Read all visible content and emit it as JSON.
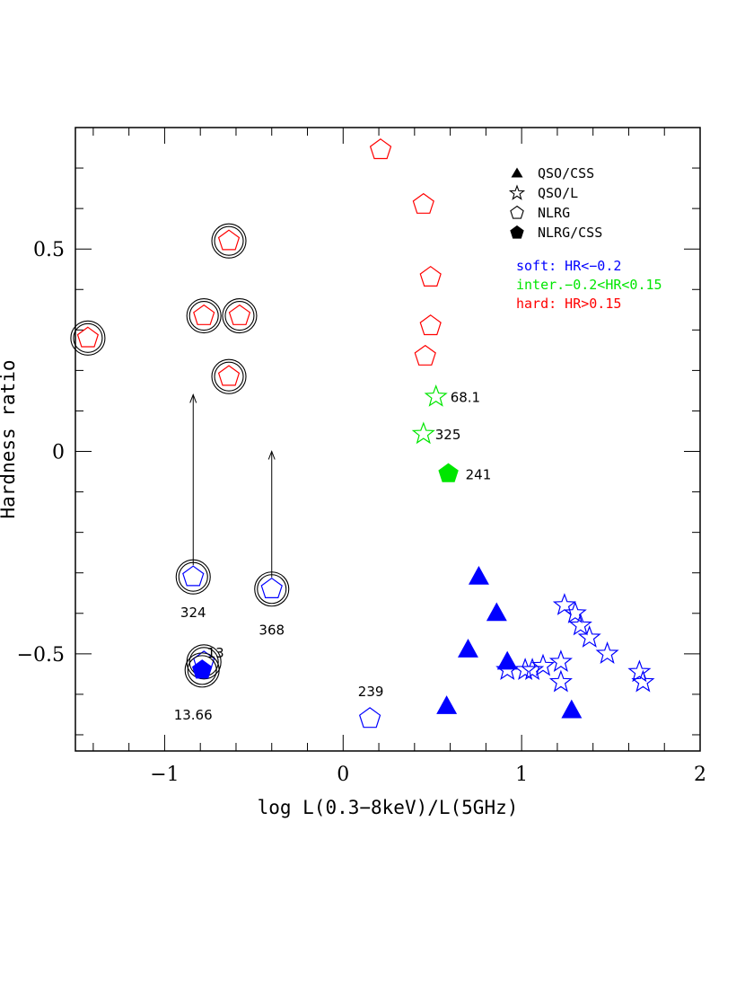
{
  "chart_data": {
    "type": "scatter",
    "title": "",
    "xlabel": "log L(0.3−8keV)/L(5GHz)",
    "ylabel": "Hardness ratio",
    "xlim": [
      -1.5,
      2
    ],
    "ylim": [
      -0.74,
      0.8
    ],
    "x_ticks": [
      -1,
      0,
      1,
      2
    ],
    "x_tick_labels": [
      "−1",
      "0",
      "1",
      "2"
    ],
    "y_ticks": [
      -0.5,
      0,
      0.5
    ],
    "y_tick_labels": [
      "−0.5",
      "0",
      "0.5"
    ],
    "legend": {
      "placement": "top-right",
      "entries": [
        {
          "marker": "triangle-filled",
          "label": "QSO/CSS"
        },
        {
          "marker": "star-open",
          "label": "QSO/L"
        },
        {
          "marker": "pentagon-open",
          "label": "NLRG"
        },
        {
          "marker": "pentagon-filled",
          "label": "NLRG/CSS"
        }
      ],
      "classes": [
        {
          "label": "soft: HR<−0.2",
          "color": "#0000ff"
        },
        {
          "label": "inter.−0.2<HR<0.15",
          "color": "#00e600"
        },
        {
          "label": "hard: HR>0.15",
          "color": "#ff0000"
        }
      ]
    },
    "colors": {
      "soft": "#0000ff",
      "inter": "#00e600",
      "hard": "#ff0000",
      "circle": "#000000"
    },
    "series": [
      {
        "name": "QSO/CSS",
        "marker": "triangle-filled",
        "points": [
          {
            "x": 0.76,
            "y": -0.31,
            "cls": "soft"
          },
          {
            "x": 0.86,
            "y": -0.4,
            "cls": "soft"
          },
          {
            "x": 0.7,
            "y": -0.49,
            "cls": "soft"
          },
          {
            "x": 0.92,
            "y": -0.52,
            "cls": "soft"
          },
          {
            "x": 0.58,
            "y": -0.63,
            "cls": "soft"
          },
          {
            "x": 1.28,
            "y": -0.64,
            "cls": "soft"
          }
        ]
      },
      {
        "name": "QSO/L",
        "marker": "star-open",
        "points": [
          {
            "x": 0.52,
            "y": 0.135,
            "cls": "inter",
            "label": "68.1"
          },
          {
            "x": 0.45,
            "y": 0.043,
            "cls": "inter",
            "label": "325"
          },
          {
            "x": 1.24,
            "y": -0.38,
            "cls": "soft"
          },
          {
            "x": 1.3,
            "y": -0.4,
            "cls": "soft"
          },
          {
            "x": 1.33,
            "y": -0.43,
            "cls": "soft"
          },
          {
            "x": 1.38,
            "y": -0.46,
            "cls": "soft"
          },
          {
            "x": 1.48,
            "y": -0.5,
            "cls": "soft"
          },
          {
            "x": 1.22,
            "y": -0.52,
            "cls": "soft"
          },
          {
            "x": 0.92,
            "y": -0.54,
            "cls": "soft"
          },
          {
            "x": 1.02,
            "y": -0.54,
            "cls": "soft"
          },
          {
            "x": 1.06,
            "y": -0.54,
            "cls": "soft"
          },
          {
            "x": 1.12,
            "y": -0.53,
            "cls": "soft"
          },
          {
            "x": 1.22,
            "y": -0.57,
            "cls": "soft"
          },
          {
            "x": 1.66,
            "y": -0.545,
            "cls": "soft"
          },
          {
            "x": 1.68,
            "y": -0.57,
            "cls": "soft"
          }
        ]
      },
      {
        "name": "NLRG",
        "marker": "pentagon-open",
        "points": [
          {
            "x": 0.21,
            "y": 0.745,
            "cls": "hard"
          },
          {
            "x": 0.45,
            "y": 0.61,
            "cls": "hard"
          },
          {
            "x": -0.64,
            "y": 0.52,
            "cls": "hard",
            "circled": true
          },
          {
            "x": 0.49,
            "y": 0.43,
            "cls": "hard"
          },
          {
            "x": -0.78,
            "y": 0.335,
            "cls": "hard",
            "circled": true
          },
          {
            "x": -0.58,
            "y": 0.335,
            "cls": "hard",
            "circled": true
          },
          {
            "x": 0.49,
            "y": 0.31,
            "cls": "hard"
          },
          {
            "x": -1.43,
            "y": 0.28,
            "cls": "hard",
            "circled": true
          },
          {
            "x": 0.46,
            "y": 0.235,
            "cls": "hard"
          },
          {
            "x": -0.64,
            "y": 0.185,
            "cls": "hard",
            "circled": true
          },
          {
            "x": -0.84,
            "y": -0.31,
            "cls": "soft",
            "circled": true,
            "label": "324",
            "upper_limit_to": 0.14
          },
          {
            "x": -0.4,
            "y": -0.34,
            "cls": "soft",
            "circled": true,
            "label": "368",
            "upper_limit_to": 0.0
          },
          {
            "x": -0.78,
            "y": -0.52,
            "cls": "soft",
            "circled": true,
            "label": "13"
          },
          {
            "x": 0.15,
            "y": -0.66,
            "cls": "soft",
            "label": "239"
          }
        ]
      },
      {
        "name": "NLRG/CSS",
        "marker": "pentagon-filled",
        "points": [
          {
            "x": 0.59,
            "y": -0.055,
            "cls": "inter",
            "label": "241"
          },
          {
            "x": -0.79,
            "y": -0.54,
            "cls": "soft",
            "circled": true,
            "label": "13.66"
          }
        ]
      }
    ]
  }
}
